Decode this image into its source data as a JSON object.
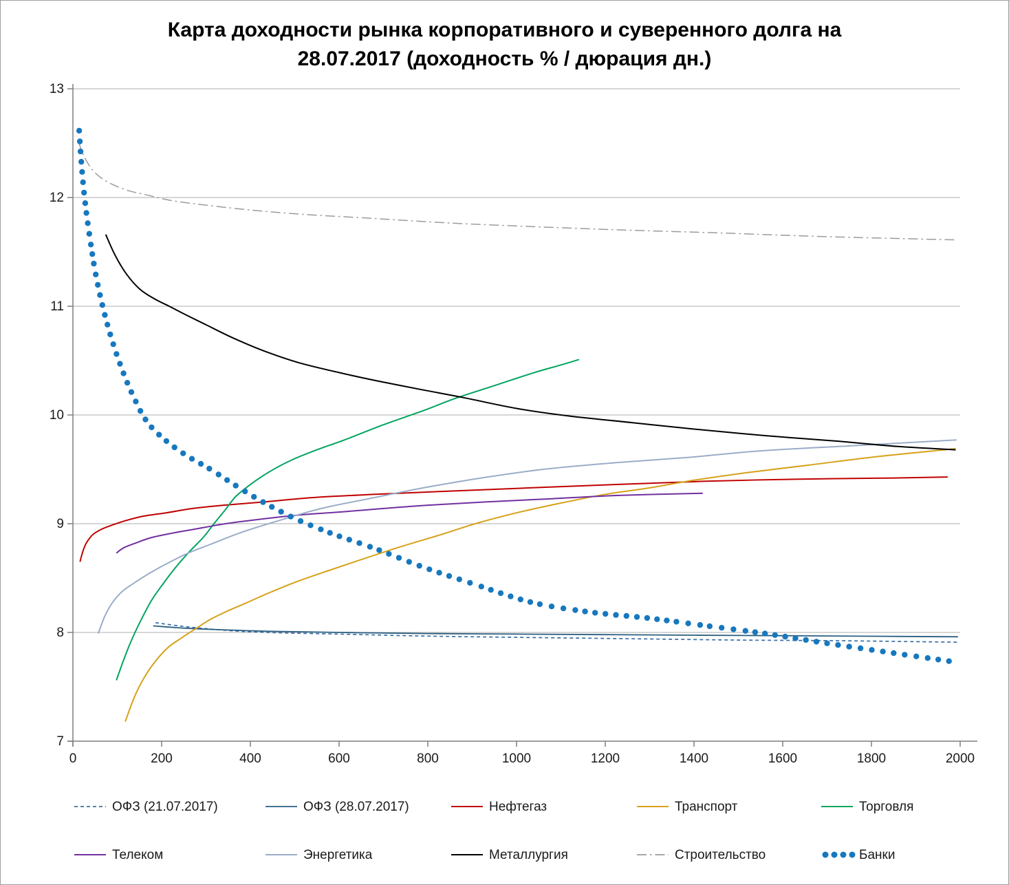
{
  "title": {
    "line1": "Карта доходности рынка корпоративного и суверенного долга на",
    "line2": "28.07.2017 (доходность % / дюрация дн.)"
  },
  "chart_data": {
    "type": "line",
    "title": "Карта доходности рынка корпоративного и суверенного долга на 28.07.2017 (доходность % / дюрация дн.)",
    "xlabel": "",
    "ylabel": "",
    "xlim": [
      0,
      2000
    ],
    "ylim": [
      7,
      13
    ],
    "x_ticks": [
      0,
      200,
      400,
      600,
      800,
      1000,
      1200,
      1400,
      1600,
      1800,
      2000
    ],
    "y_ticks": [
      7,
      8,
      9,
      10,
      11,
      12,
      13
    ],
    "grid": "horizontal",
    "legend_position": "bottom",
    "series": [
      {
        "id": "ofz-21-07",
        "name": "ОФЗ (21.07.2017)",
        "color": "#3A6EA5",
        "style": "dashed",
        "width": 1.7,
        "points": [
          [
            186,
            8.09
          ],
          [
            240,
            8.06
          ],
          [
            300,
            8.035
          ],
          [
            380,
            8.01
          ],
          [
            480,
            7.995
          ],
          [
            600,
            7.985
          ],
          [
            750,
            7.97
          ],
          [
            900,
            7.96
          ],
          [
            1100,
            7.95
          ],
          [
            1300,
            7.94
          ],
          [
            1500,
            7.93
          ],
          [
            1700,
            7.925
          ],
          [
            1900,
            7.915
          ],
          [
            1995,
            7.91
          ]
        ]
      },
      {
        "id": "ofz-28-07",
        "name": "ОФЗ (28.07.2017)",
        "color": "#2A5E80",
        "style": "solid",
        "width": 1.8,
        "points": [
          [
            181,
            8.06
          ],
          [
            250,
            8.04
          ],
          [
            330,
            8.025
          ],
          [
            450,
            8.01
          ],
          [
            600,
            8.0
          ],
          [
            800,
            7.99
          ],
          [
            1000,
            7.985
          ],
          [
            1200,
            7.98
          ],
          [
            1400,
            7.975
          ],
          [
            1600,
            7.97
          ],
          [
            1800,
            7.965
          ],
          [
            1995,
            7.96
          ]
        ]
      },
      {
        "id": "neftegaz",
        "name": "Нефтегаз",
        "color": "#C00000",
        "style": "solid",
        "width": 2,
        "points": [
          [
            16,
            8.65
          ],
          [
            22,
            8.74
          ],
          [
            30,
            8.82
          ],
          [
            45,
            8.9
          ],
          [
            65,
            8.95
          ],
          [
            90,
            8.99
          ],
          [
            120,
            9.03
          ],
          [
            160,
            9.07
          ],
          [
            210,
            9.1
          ],
          [
            270,
            9.14
          ],
          [
            340,
            9.17
          ],
          [
            430,
            9.2
          ],
          [
            540,
            9.24
          ],
          [
            682,
            9.27
          ],
          [
            850,
            9.3
          ],
          [
            1030,
            9.33
          ],
          [
            1220,
            9.36
          ],
          [
            1420,
            9.39
          ],
          [
            1640,
            9.41
          ],
          [
            1850,
            9.42
          ],
          [
            1972,
            9.43
          ]
        ]
      },
      {
        "id": "transport",
        "name": "Транспорт",
        "color": "#D6A118",
        "style": "solid",
        "width": 2,
        "points": [
          [
            118,
            7.18
          ],
          [
            138,
            7.4
          ],
          [
            160,
            7.58
          ],
          [
            185,
            7.73
          ],
          [
            214,
            7.86
          ],
          [
            245,
            7.95
          ],
          [
            275,
            8.03
          ],
          [
            310,
            8.12
          ],
          [
            350,
            8.2
          ],
          [
            390,
            8.27
          ],
          [
            440,
            8.36
          ],
          [
            500,
            8.46
          ],
          [
            570,
            8.56
          ],
          [
            650,
            8.67
          ],
          [
            740,
            8.79
          ],
          [
            830,
            8.9
          ],
          [
            907,
            9.0
          ],
          [
            1000,
            9.1
          ],
          [
            1100,
            9.19
          ],
          [
            1200,
            9.27
          ],
          [
            1300,
            9.33
          ],
          [
            1400,
            9.4
          ],
          [
            1520,
            9.47
          ],
          [
            1660,
            9.54
          ],
          [
            1820,
            9.62
          ],
          [
            1990,
            9.69
          ]
        ]
      },
      {
        "id": "torgovlya",
        "name": "Торговля",
        "color": "#00A45F",
        "style": "solid",
        "width": 2,
        "points": [
          [
            98,
            7.56
          ],
          [
            112,
            7.72
          ],
          [
            126,
            7.87
          ],
          [
            140,
            8.0
          ],
          [
            158,
            8.15
          ],
          [
            178,
            8.3
          ],
          [
            202,
            8.44
          ],
          [
            230,
            8.59
          ],
          [
            262,
            8.74
          ],
          [
            295,
            8.88
          ],
          [
            318,
            9.0
          ],
          [
            342,
            9.12
          ],
          [
            367,
            9.25
          ],
          [
            400,
            9.36
          ],
          [
            440,
            9.47
          ],
          [
            490,
            9.58
          ],
          [
            550,
            9.68
          ],
          [
            612,
            9.77
          ],
          [
            700,
            9.91
          ],
          [
            790,
            10.04
          ],
          [
            860,
            10.15
          ],
          [
            950,
            10.27
          ],
          [
            1040,
            10.39
          ],
          [
            1100,
            10.46
          ],
          [
            1141,
            10.51
          ]
        ]
      },
      {
        "id": "telekom",
        "name": "Телеком",
        "color": "#7030A0",
        "style": "solid",
        "width": 2,
        "points": [
          [
            98,
            8.73
          ],
          [
            115,
            8.78
          ],
          [
            140,
            8.82
          ],
          [
            175,
            8.87
          ],
          [
            220,
            8.91
          ],
          [
            275,
            8.95
          ],
          [
            344,
            9.0
          ],
          [
            420,
            9.04
          ],
          [
            510,
            9.08
          ],
          [
            610,
            9.11
          ],
          [
            700,
            9.14
          ],
          [
            800,
            9.17
          ],
          [
            930,
            9.2
          ],
          [
            1080,
            9.23
          ],
          [
            1230,
            9.26
          ],
          [
            1420,
            9.28
          ]
        ]
      },
      {
        "id": "energetika",
        "name": "Энергетика",
        "color": "#9AACC8",
        "style": "solid",
        "width": 2,
        "points": [
          [
            57,
            7.99
          ],
          [
            72,
            8.15
          ],
          [
            90,
            8.28
          ],
          [
            112,
            8.38
          ],
          [
            140,
            8.46
          ],
          [
            175,
            8.55
          ],
          [
            215,
            8.64
          ],
          [
            260,
            8.73
          ],
          [
            310,
            8.81
          ],
          [
            380,
            8.92
          ],
          [
            465,
            9.03
          ],
          [
            560,
            9.14
          ],
          [
            667,
            9.23
          ],
          [
            790,
            9.33
          ],
          [
            920,
            9.42
          ],
          [
            1060,
            9.5
          ],
          [
            1220,
            9.56
          ],
          [
            1388,
            9.61
          ],
          [
            1550,
            9.67
          ],
          [
            1770,
            9.72
          ],
          [
            1992,
            9.77
          ]
        ]
      },
      {
        "id": "metallurgiya",
        "name": "Металлургия",
        "color": "#000000",
        "style": "solid",
        "width": 2,
        "points": [
          [
            74,
            11.66
          ],
          [
            95,
            11.47
          ],
          [
            120,
            11.3
          ],
          [
            150,
            11.16
          ],
          [
            183,
            11.07
          ],
          [
            217,
            11.0
          ],
          [
            255,
            10.92
          ],
          [
            300,
            10.83
          ],
          [
            360,
            10.71
          ],
          [
            430,
            10.59
          ],
          [
            510,
            10.48
          ],
          [
            600,
            10.39
          ],
          [
            690,
            10.31
          ],
          [
            790,
            10.23
          ],
          [
            880,
            10.16
          ],
          [
            1000,
            10.06
          ],
          [
            1120,
            9.99
          ],
          [
            1260,
            9.93
          ],
          [
            1400,
            9.87
          ],
          [
            1560,
            9.81
          ],
          [
            1720,
            9.76
          ],
          [
            1860,
            9.71
          ],
          [
            1990,
            9.68
          ]
        ]
      },
      {
        "id": "stroitelstvo",
        "name": "Строительство",
        "color": "#9B9B9B",
        "style": "dashdot",
        "width": 1.5,
        "points": [
          [
            12,
            12.52
          ],
          [
            25,
            12.38
          ],
          [
            45,
            12.25
          ],
          [
            75,
            12.15
          ],
          [
            120,
            12.07
          ],
          [
            170,
            12.02
          ],
          [
            225,
            11.97
          ],
          [
            300,
            11.93
          ],
          [
            400,
            11.885
          ],
          [
            520,
            11.845
          ],
          [
            667,
            11.81
          ],
          [
            850,
            11.765
          ],
          [
            1050,
            11.73
          ],
          [
            1250,
            11.7
          ],
          [
            1450,
            11.675
          ],
          [
            1700,
            11.64
          ],
          [
            1990,
            11.61
          ]
        ]
      },
      {
        "id": "banki",
        "name": "Банки",
        "color": "#1778BE",
        "style": "dots",
        "width": 0,
        "points": [
          [
            14,
            12.62
          ],
          [
            18,
            12.38
          ],
          [
            23,
            12.13
          ],
          [
            30,
            11.87
          ],
          [
            40,
            11.58
          ],
          [
            52,
            11.28
          ],
          [
            67,
            11.0
          ],
          [
            85,
            10.73
          ],
          [
            107,
            10.46
          ],
          [
            133,
            10.2
          ],
          [
            165,
            9.95
          ],
          [
            205,
            9.78
          ],
          [
            255,
            9.63
          ],
          [
            310,
            9.5
          ],
          [
            375,
            9.33
          ],
          [
            437,
            9.18
          ],
          [
            510,
            9.03
          ],
          [
            590,
            8.9
          ],
          [
            682,
            8.77
          ],
          [
            790,
            8.6
          ],
          [
            900,
            8.45
          ],
          [
            1031,
            8.28
          ],
          [
            1160,
            8.19
          ],
          [
            1300,
            8.13
          ],
          [
            1430,
            8.06
          ],
          [
            1560,
            7.99
          ],
          [
            1700,
            7.9
          ],
          [
            1850,
            7.81
          ],
          [
            1985,
            7.73
          ]
        ]
      }
    ],
    "legend_rows": [
      [
        "ofz-21-07",
        "ofz-28-07",
        "neftegaz",
        "transport",
        "torgovlya"
      ],
      [
        "telekom",
        "energetika",
        "metallurgiya",
        "stroitelstvo",
        "banki"
      ]
    ]
  },
  "style": {
    "grid_color": "#ACACAC",
    "axis_color": "#7F7F7F",
    "tick_label_color": "#1a1a1a",
    "legend_label_color": "#1a1a1a"
  }
}
